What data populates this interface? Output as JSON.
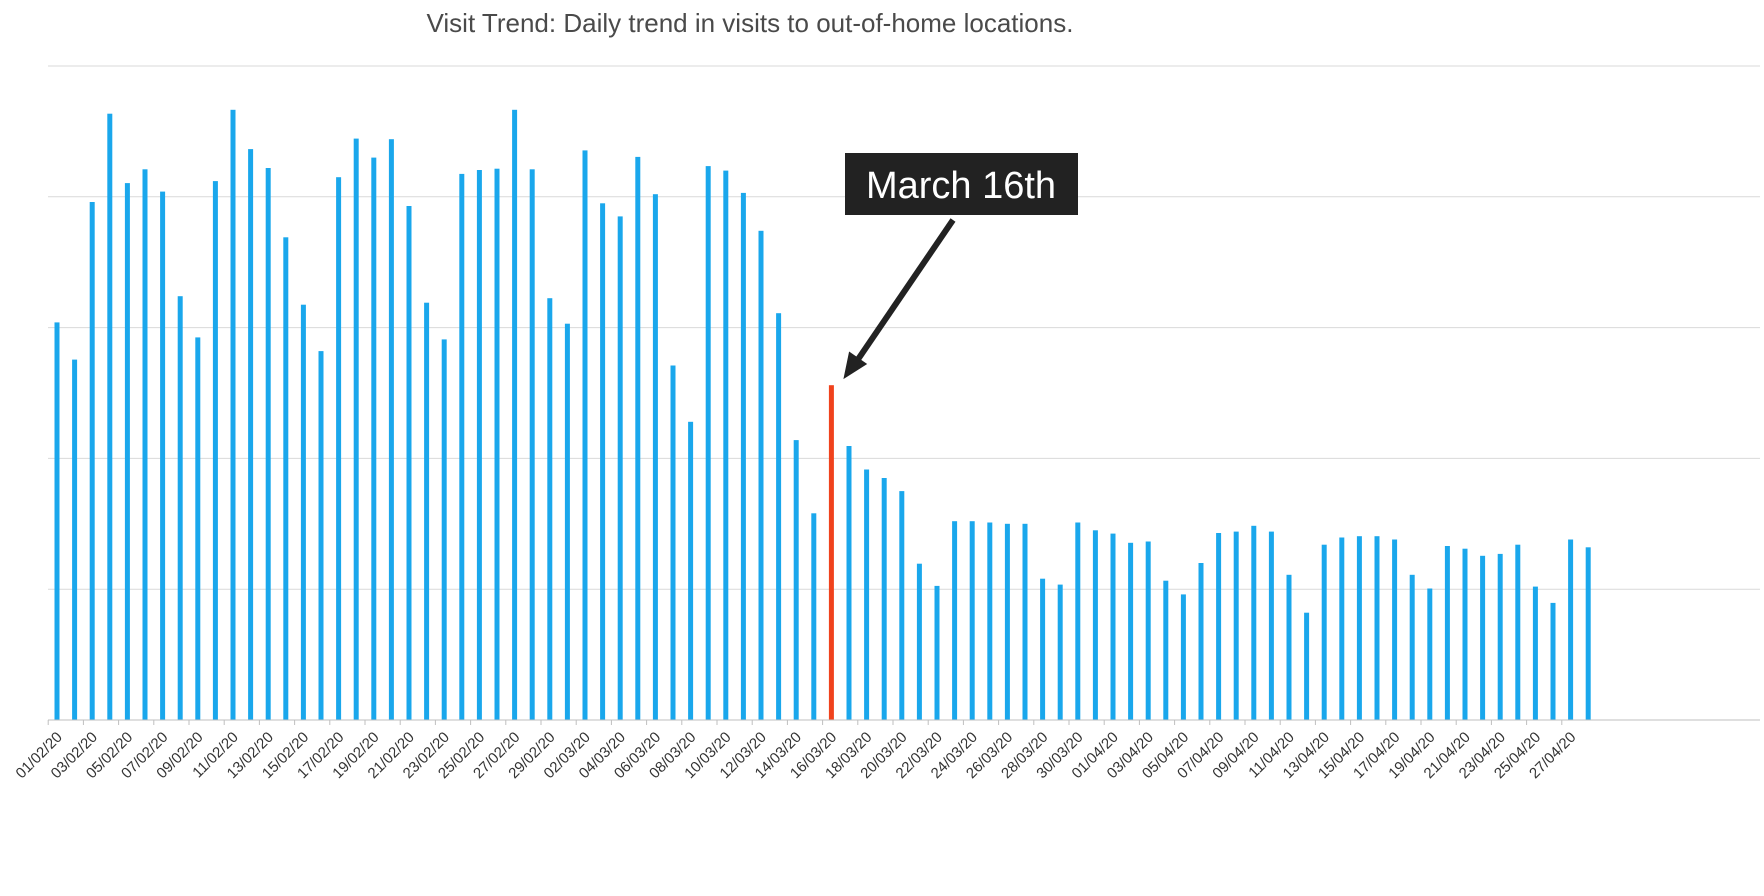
{
  "chart_data": {
    "type": "bar",
    "title": "Visit Trend: Daily trend in visits to out-of-home locations.",
    "xlabel": "",
    "ylabel": "",
    "ylim": [
      0,
      100
    ],
    "grid": true,
    "axis_ticks_visible": false,
    "categories": [
      "01/02/20",
      "02/02/20",
      "03/02/20",
      "04/02/20",
      "05/02/20",
      "06/02/20",
      "07/02/20",
      "08/02/20",
      "09/02/20",
      "10/02/20",
      "11/02/20",
      "12/02/20",
      "13/02/20",
      "14/02/20",
      "15/02/20",
      "16/02/20",
      "17/02/20",
      "18/02/20",
      "19/02/20",
      "20/02/20",
      "21/02/20",
      "22/02/20",
      "23/02/20",
      "24/02/20",
      "25/02/20",
      "26/02/20",
      "27/02/20",
      "28/02/20",
      "29/02/20",
      "01/03/20",
      "02/03/20",
      "03/03/20",
      "04/03/20",
      "05/03/20",
      "06/03/20",
      "07/03/20",
      "08/03/20",
      "09/03/20",
      "10/03/20",
      "11/03/20",
      "12/03/20",
      "13/03/20",
      "14/03/20",
      "15/03/20",
      "16/03/20",
      "17/03/20",
      "18/03/20",
      "19/03/20",
      "20/03/20",
      "21/03/20",
      "22/03/20",
      "23/03/20",
      "24/03/20",
      "25/03/20",
      "26/03/20",
      "27/03/20",
      "28/03/20",
      "29/03/20",
      "30/03/20",
      "31/03/20",
      "01/04/20",
      "02/04/20",
      "03/04/20",
      "04/04/20",
      "05/04/20",
      "06/04/20",
      "07/04/20",
      "08/04/20",
      "09/04/20",
      "10/04/20",
      "11/04/20",
      "12/04/20",
      "13/04/20",
      "14/04/20",
      "15/04/20",
      "16/04/20",
      "17/04/20",
      "18/04/20",
      "19/04/20",
      "20/04/20",
      "21/04/20",
      "22/04/20",
      "23/04/20",
      "24/04/20",
      "25/04/20",
      "26/04/20",
      "27/04/20",
      "28/04/20"
    ],
    "tick_labels": [
      "01/02/20",
      "03/02/20",
      "05/02/20",
      "07/02/20",
      "09/02/20",
      "11/02/20",
      "13/02/20",
      "15/02/20",
      "17/02/20",
      "19/02/20",
      "21/02/20",
      "23/02/20",
      "25/02/20",
      "27/02/20",
      "29/02/20",
      "02/03/20",
      "04/03/20",
      "06/03/20",
      "08/03/20",
      "10/03/20",
      "12/03/20",
      "14/03/20",
      "16/03/20",
      "18/03/20",
      "20/03/20",
      "22/03/20",
      "24/03/20",
      "26/03/20",
      "28/03/20",
      "30/03/20",
      "01/04/20",
      "03/04/20",
      "05/04/20",
      "07/04/20",
      "09/04/20",
      "11/04/20",
      "13/04/20",
      "15/04/20",
      "17/04/20",
      "19/04/20",
      "21/04/20",
      "23/04/20",
      "25/04/20",
      "27/04/20"
    ],
    "series": [
      {
        "values": [
          60.8,
          55.1,
          79.2,
          92.7,
          82.1,
          84.2,
          80.8,
          64.8,
          58.5,
          82.4,
          93.3,
          87.3,
          84.4,
          73.8,
          63.5,
          56.4,
          83.0,
          88.9,
          86.0,
          88.8,
          78.6,
          63.8,
          58.2,
          83.5,
          84.1,
          84.3,
          93.3,
          84.2,
          64.5,
          60.6,
          87.1,
          79.0,
          77.0,
          86.1,
          80.4,
          54.2,
          45.6,
          84.7,
          84.0,
          80.6,
          74.8,
          62.2,
          42.8,
          31.6,
          51.2,
          41.9,
          38.3,
          37.0,
          35.0,
          23.9,
          20.5,
          30.4,
          30.4,
          30.2,
          30.0,
          30.0,
          21.6,
          20.7,
          30.2,
          29.0,
          28.5,
          27.1,
          27.3,
          21.3,
          19.2,
          24.0,
          28.6,
          28.8,
          29.7,
          28.8,
          22.2,
          16.4,
          26.8,
          27.9,
          28.1,
          28.1,
          27.6,
          22.2,
          20.1,
          26.6,
          26.2,
          25.1,
          25.4,
          26.8,
          20.4,
          17.9,
          27.6,
          26.4
        ]
      }
    ],
    "colors": {
      "bar": "#1aa7ec",
      "highlight": "#f0421c",
      "grid": "#d9d9d9",
      "axis": "#bfbfbf",
      "callout_bg": "#222222",
      "arrow": "#222222"
    },
    "highlight_index": 44,
    "annotation": {
      "text": "March 16th"
    }
  }
}
